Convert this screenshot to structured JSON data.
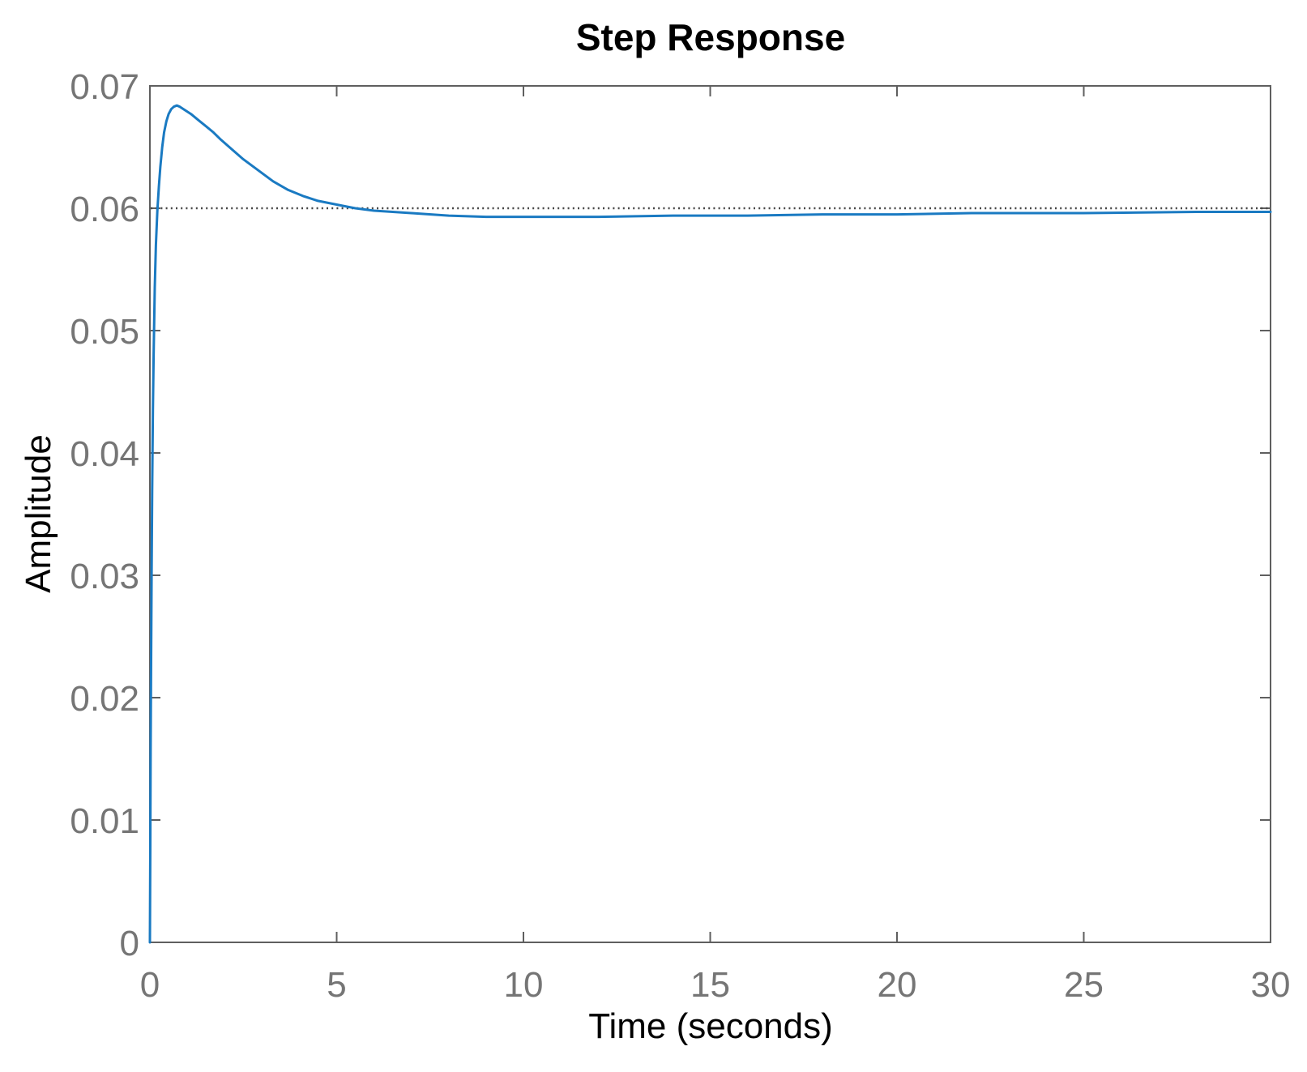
{
  "chart_data": {
    "type": "line",
    "title": "Step Response",
    "xlabel": "Time (seconds)",
    "ylabel": "Amplitude",
    "xlim": [
      0,
      30
    ],
    "ylim": [
      0,
      0.07
    ],
    "xticks": [
      0,
      5,
      10,
      15,
      20,
      25,
      30
    ],
    "xtick_labels": [
      "0",
      "5",
      "10",
      "15",
      "20",
      "25",
      "30"
    ],
    "yticks": [
      0,
      0.01,
      0.02,
      0.03,
      0.04,
      0.05,
      0.06,
      0.07
    ],
    "ytick_labels": [
      "0",
      "0.01",
      "0.02",
      "0.03",
      "0.04",
      "0.05",
      "0.06",
      "0.07"
    ],
    "grid": false,
    "box": true,
    "legend": null,
    "reference_line": {
      "name": "steady-state line",
      "value": 0.06,
      "style": "dotted",
      "color": "#454545"
    },
    "series": [
      {
        "name": "step response",
        "color": "#1a7ac2",
        "peak_time": 0.72,
        "peak_amplitude": 0.0684,
        "final_value": 0.0597,
        "x": [
          0,
          0.01,
          0.02,
          0.03,
          0.045,
          0.06,
          0.08,
          0.1,
          0.13,
          0.16,
          0.2,
          0.24,
          0.28,
          0.33,
          0.38,
          0.44,
          0.5,
          0.57,
          0.64,
          0.72,
          0.8,
          0.9,
          1.0,
          1.1,
          1.3,
          1.5,
          1.7,
          1.9,
          2.2,
          2.5,
          2.9,
          3.3,
          3.7,
          4.1,
          4.5,
          5.0,
          5.5,
          6.0,
          6.5,
          7.0,
          8.0,
          9.0,
          10,
          12,
          14,
          16,
          18,
          20,
          22,
          25,
          28,
          30
        ],
        "y": [
          0,
          0.008,
          0.0155,
          0.022,
          0.03,
          0.037,
          0.0435,
          0.048,
          0.0535,
          0.057,
          0.0598,
          0.0618,
          0.0634,
          0.065,
          0.0662,
          0.0671,
          0.0677,
          0.0681,
          0.0683,
          0.0684,
          0.0683,
          0.0681,
          0.0679,
          0.0677,
          0.0672,
          0.0667,
          0.0662,
          0.0656,
          0.0648,
          0.064,
          0.0631,
          0.0622,
          0.0615,
          0.061,
          0.0606,
          0.0603,
          0.06,
          0.0598,
          0.0597,
          0.0596,
          0.0594,
          0.0593,
          0.0593,
          0.0593,
          0.0594,
          0.0594,
          0.0595,
          0.0595,
          0.0596,
          0.0596,
          0.0597,
          0.0597
        ]
      }
    ],
    "colors": {
      "background": "#ffffff",
      "axis": "#5f5f5f",
      "tick_label": "#757575",
      "text": "#000000",
      "line": "#1a7ac2",
      "reference": "#454545"
    }
  }
}
